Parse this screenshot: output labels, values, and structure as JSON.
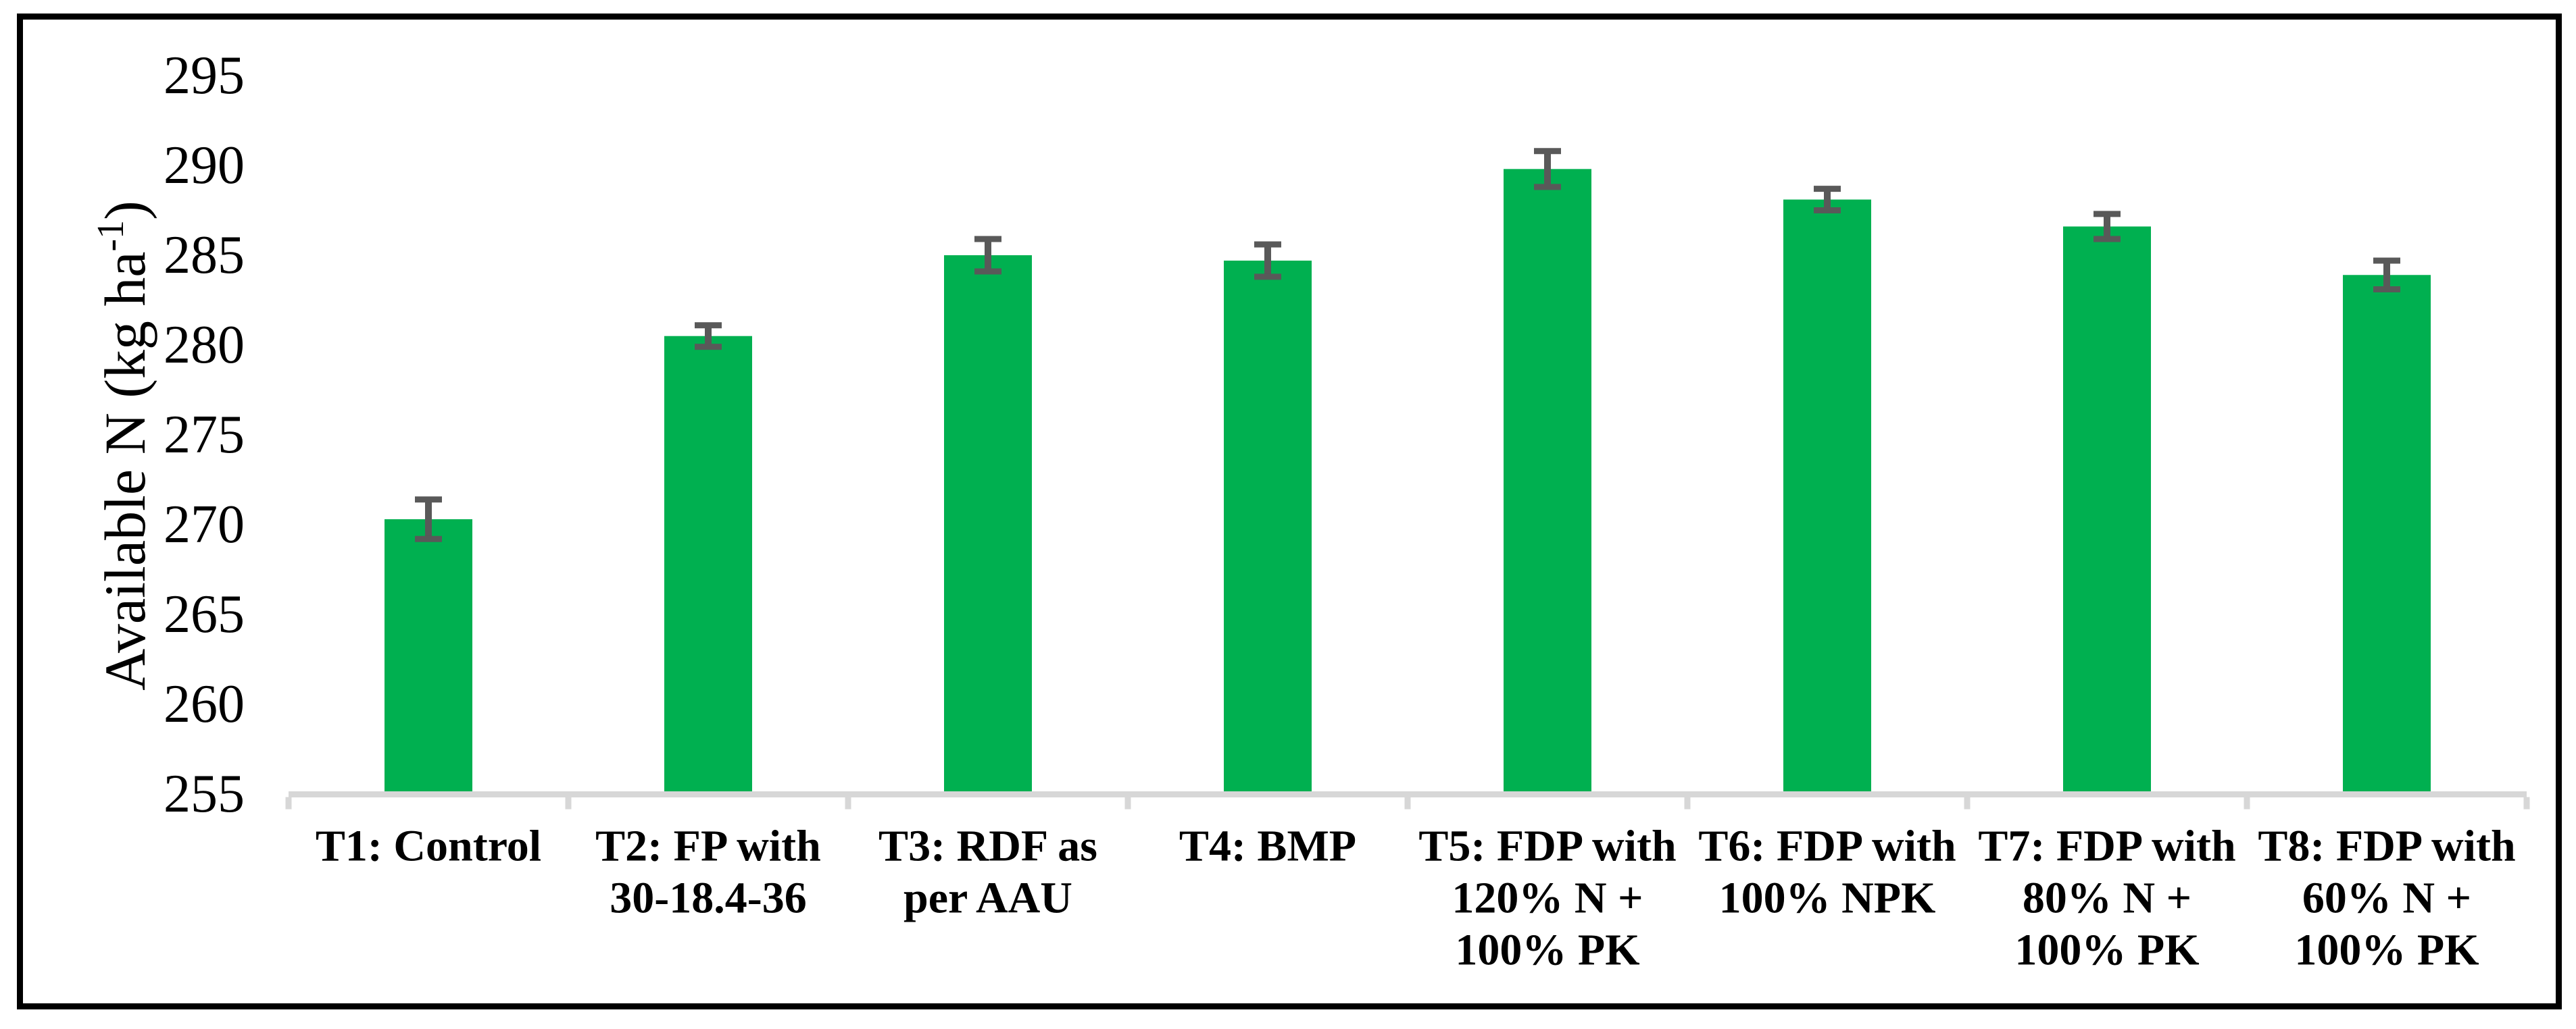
{
  "chart_data": {
    "type": "bar",
    "title": "",
    "xlabel": "",
    "ylabel": "Available N (kg ha⁻¹)",
    "ylabel_main": "Available N (kg ha",
    "ylabel_sup": "-1",
    "ylabel_close": ")",
    "categories": [
      "T1: Control",
      "T2: FP with 30-18.4-36",
      "T3: RDF as per AAU",
      "T4: BMP",
      "T5: FDP with 120% N + 100% PK",
      "T6: FDP with 100% NPK",
      "T7: FDP with 80% N + 100% PK",
      "T8: FDP with 60% N + 100% PK"
    ],
    "label_lines": [
      [
        "T1: Control"
      ],
      [
        "T2: FP with",
        "30-18.4-36"
      ],
      [
        "T3: RDF as",
        "per AAU"
      ],
      [
        "T4: BMP"
      ],
      [
        "T5: FDP with",
        "120% N +",
        "100% PK"
      ],
      [
        "T6: FDP with",
        "100% NPK"
      ],
      [
        "T7: FDP with",
        "80% N +",
        "100% PK"
      ],
      [
        "T8: FDP with",
        "60% N +",
        "100% PK"
      ]
    ],
    "values": [
      270.3,
      280.5,
      285.0,
      284.7,
      289.8,
      288.1,
      286.6,
      283.9
    ],
    "errors": [
      1.1,
      0.6,
      0.9,
      0.9,
      1.0,
      0.6,
      0.7,
      0.8
    ],
    "yticks": [
      255,
      260,
      265,
      270,
      275,
      280,
      285,
      290,
      295
    ],
    "ylim": [
      255,
      295
    ],
    "grid": false,
    "legend": false,
    "error_bar_direction": "both",
    "colors": {
      "bar": "#00B050",
      "error_bar": "#595959",
      "axis_line": "#D7D7D7",
      "text": "#000000",
      "border": "#000000",
      "background": "#FFFFFF"
    }
  }
}
